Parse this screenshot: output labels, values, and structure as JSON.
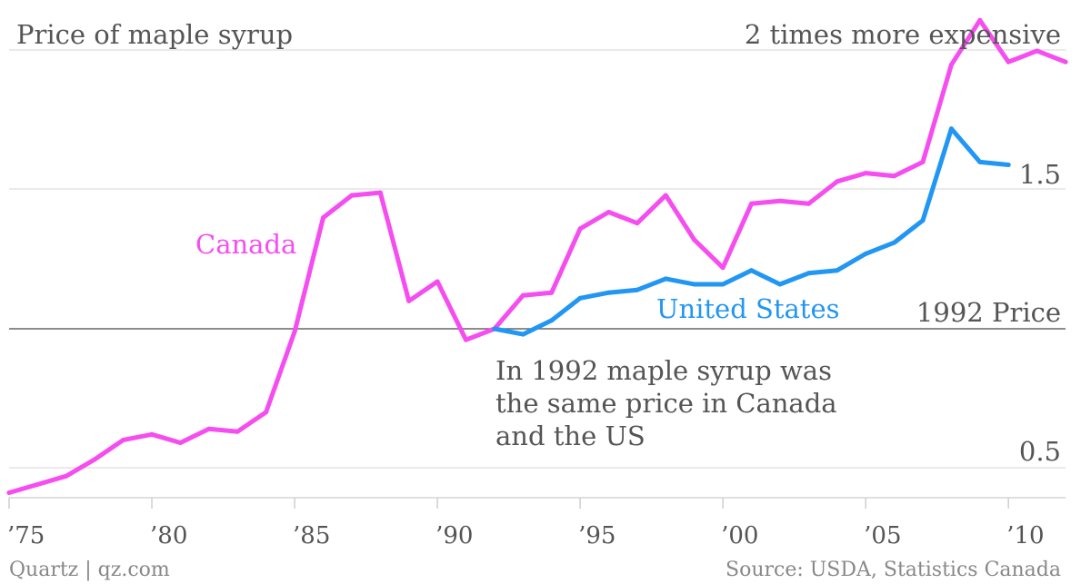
{
  "chart_data": {
    "type": "line",
    "title": "Price of maple syrup",
    "y_top_label": "2 times more expensive",
    "y_tick_labels": [
      {
        "value": 1.5,
        "label": "1.5"
      },
      {
        "value": 1.0,
        "label": "1992 Price"
      },
      {
        "value": 0.5,
        "label": "0.5"
      }
    ],
    "xlim": [
      1975,
      2012
    ],
    "ylim": [
      0.42,
      2.0
    ],
    "x_ticks": [
      {
        "value": 1975,
        "label": "’75"
      },
      {
        "value": 1980,
        "label": "’80"
      },
      {
        "value": 1985,
        "label": "’85"
      },
      {
        "value": 1990,
        "label": "’90"
      },
      {
        "value": 1995,
        "label": "’95"
      },
      {
        "value": 2000,
        "label": "’00"
      },
      {
        "value": 2005,
        "label": "’05"
      },
      {
        "value": 2010,
        "label": "’10"
      }
    ],
    "series": [
      {
        "name": "Canada",
        "color": "#f54df0",
        "x": [
          1975,
          1976,
          1977,
          1978,
          1979,
          1980,
          1981,
          1982,
          1983,
          1984,
          1985,
          1986,
          1987,
          1988,
          1989,
          1990,
          1991,
          1992,
          1993,
          1994,
          1995,
          1996,
          1997,
          1998,
          1999,
          2000,
          2001,
          2002,
          2003,
          2004,
          2005,
          2006,
          2007,
          2008,
          2009,
          2010,
          2011,
          2012
        ],
        "values": [
          0.41,
          0.44,
          0.47,
          0.53,
          0.6,
          0.62,
          0.59,
          0.64,
          0.63,
          0.7,
          0.99,
          1.4,
          1.48,
          1.49,
          1.1,
          1.17,
          0.96,
          1.0,
          1.12,
          1.13,
          1.36,
          1.42,
          1.38,
          1.48,
          1.32,
          1.22,
          1.45,
          1.46,
          1.45,
          1.53,
          1.56,
          1.55,
          1.6,
          1.95,
          2.11,
          1.96,
          2.0,
          1.96
        ]
      },
      {
        "name": "United States",
        "color": "#2196f3",
        "x": [
          1992,
          1993,
          1994,
          1995,
          1996,
          1997,
          1998,
          1999,
          2000,
          2001,
          2002,
          2003,
          2004,
          2005,
          2006,
          2007,
          2008,
          2009,
          2010
        ],
        "values": [
          1.0,
          0.98,
          1.03,
          1.11,
          1.13,
          1.14,
          1.18,
          1.16,
          1.16,
          1.21,
          1.16,
          1.2,
          1.21,
          1.27,
          1.31,
          1.39,
          1.72,
          1.6,
          1.59
        ]
      }
    ],
    "annotation": [
      "In 1992 maple syrup was",
      "the same price in Canada",
      "and the US"
    ],
    "grid": true
  },
  "footer": {
    "left": "Quartz | qz.com",
    "right": "Source: USDA, Statistics Canada"
  }
}
